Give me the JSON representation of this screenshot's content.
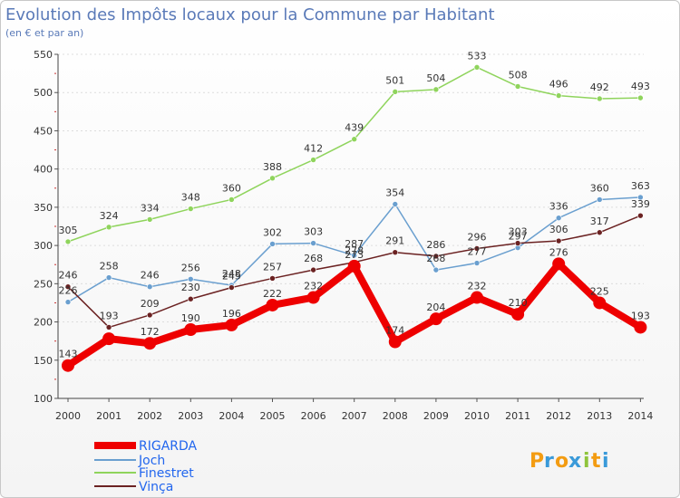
{
  "chart_data": {
    "type": "line",
    "title": "Evolution des Impôts locaux pour la Commune par Habitant",
    "subtitle": "(en € et par an)",
    "xlabel": "",
    "ylabel": "",
    "x": [
      "2000",
      "2001",
      "2002",
      "2003",
      "2004",
      "2005",
      "2006",
      "2007",
      "2008",
      "2009",
      "2010",
      "2011",
      "2012",
      "2013",
      "2014"
    ],
    "ylim": [
      100,
      550
    ],
    "yticks": [
      100,
      150,
      200,
      250,
      300,
      350,
      400,
      450,
      500,
      550
    ],
    "legend_position": "bottom-left",
    "series": [
      {
        "name": "Finestret",
        "color": "#8fd45c",
        "values": [
          305,
          324,
          334,
          348,
          360,
          388,
          412,
          439,
          501,
          504,
          533,
          508,
          496,
          492,
          493
        ]
      },
      {
        "name": "Joch",
        "color": "#6a9fcf",
        "values": [
          226,
          258,
          246,
          256,
          248,
          302,
          303,
          287,
          354,
          268,
          277,
          297,
          336,
          360,
          363
        ]
      },
      {
        "name": "Vinça",
        "color": "#6b2222",
        "values": [
          246,
          193,
          209,
          230,
          245,
          257,
          268,
          278,
          291,
          286,
          296,
          303,
          306,
          317,
          339
        ]
      },
      {
        "name": "RIGARDA",
        "color": "#ee0000",
        "values": [
          143,
          178,
          172,
          190,
          196,
          222,
          232,
          273,
          174,
          204,
          232,
          210,
          276,
          225,
          193
        ]
      }
    ],
    "labels": {
      "Finestret": [
        "305",
        "324",
        "334",
        "348",
        "360",
        "388",
        "412",
        "439",
        "501",
        "504",
        "533",
        "508",
        "496",
        "492",
        "493"
      ],
      "Joch": [
        "226",
        "258",
        "246",
        "256",
        "248",
        "302",
        "303",
        "287",
        "354",
        "268",
        "277",
        "297",
        "336",
        "360",
        "363"
      ],
      "Vinça": [
        "246",
        "193",
        "209",
        "230",
        "245",
        "257",
        "268",
        "278",
        "291",
        "286",
        "296",
        "303",
        "306",
        "317",
        "339"
      ],
      "RIGARDA": [
        "143",
        "",
        "172",
        "190",
        "196",
        "222",
        "232",
        "273",
        "174",
        "204",
        "232",
        "210",
        "276",
        "225",
        "193"
      ]
    }
  },
  "legend": [
    "RIGARDA",
    "Joch",
    "Finestret",
    "Vinça"
  ],
  "logo": {
    "text": "Proxiti"
  }
}
